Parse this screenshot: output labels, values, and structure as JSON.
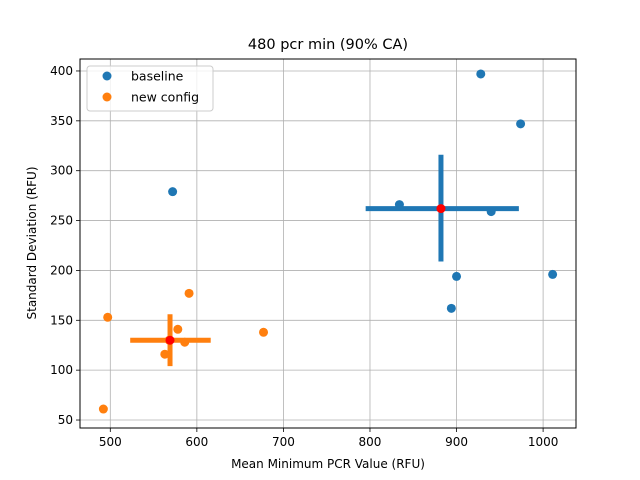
{
  "chart_data": {
    "type": "scatter",
    "title": "480 pcr min (90% CA)",
    "xlabel": "Mean Minimum PCR Value (RFU)",
    "ylabel": "Standard Deviation (RFU)",
    "xlim": [
      465,
      1038
    ],
    "ylim": [
      42,
      412
    ],
    "xticks": [
      500,
      600,
      700,
      800,
      900,
      1000
    ],
    "yticks": [
      50,
      100,
      150,
      200,
      250,
      300,
      350,
      400
    ],
    "grid": true,
    "legend_position": "top-left",
    "series": [
      {
        "name": "baseline",
        "color": "#1f77b4",
        "points": [
          [
            572,
            279
          ],
          [
            928,
            397
          ],
          [
            974,
            347
          ],
          [
            834,
            266
          ],
          [
            940,
            259
          ],
          [
            900,
            194
          ],
          [
            1011,
            196
          ],
          [
            894,
            162
          ]
        ],
        "center": [
          882,
          262
        ],
        "x_error": [
          795,
          972
        ],
        "y_error": [
          209,
          316
        ]
      },
      {
        "name": "new config",
        "color": "#ff7f0e",
        "points": [
          [
            497,
            153
          ],
          [
            591,
            177
          ],
          [
            578,
            141
          ],
          [
            677,
            138
          ],
          [
            568,
            130
          ],
          [
            586,
            128
          ],
          [
            563,
            116
          ],
          [
            492,
            61
          ]
        ],
        "center": [
          569,
          130
        ],
        "x_error": [
          523,
          616
        ],
        "y_error": [
          104,
          156
        ]
      }
    ],
    "center_color": "#ff0000"
  }
}
